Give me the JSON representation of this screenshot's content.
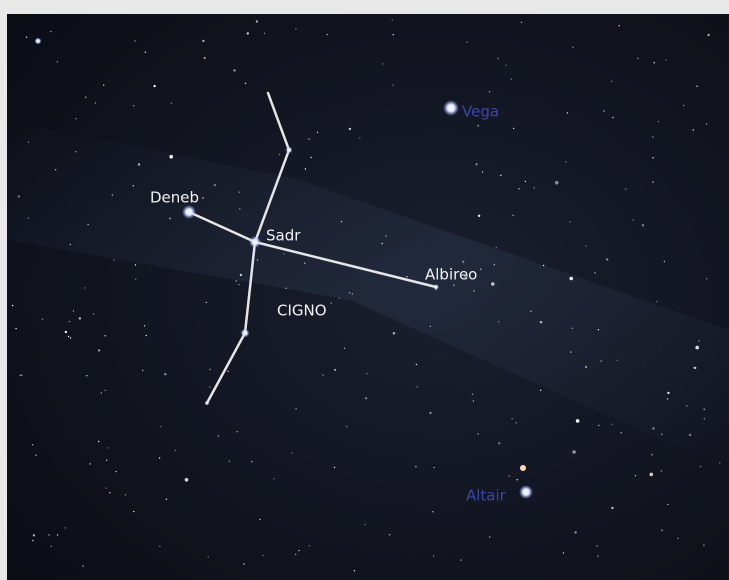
{
  "stars": [
    {
      "name": "Vega"
    },
    {
      "name": "Deneb"
    },
    {
      "name": "Sadr"
    },
    {
      "name": "Albireo"
    },
    {
      "name": "Altair"
    }
  ],
  "constellation": "CIGNO"
}
